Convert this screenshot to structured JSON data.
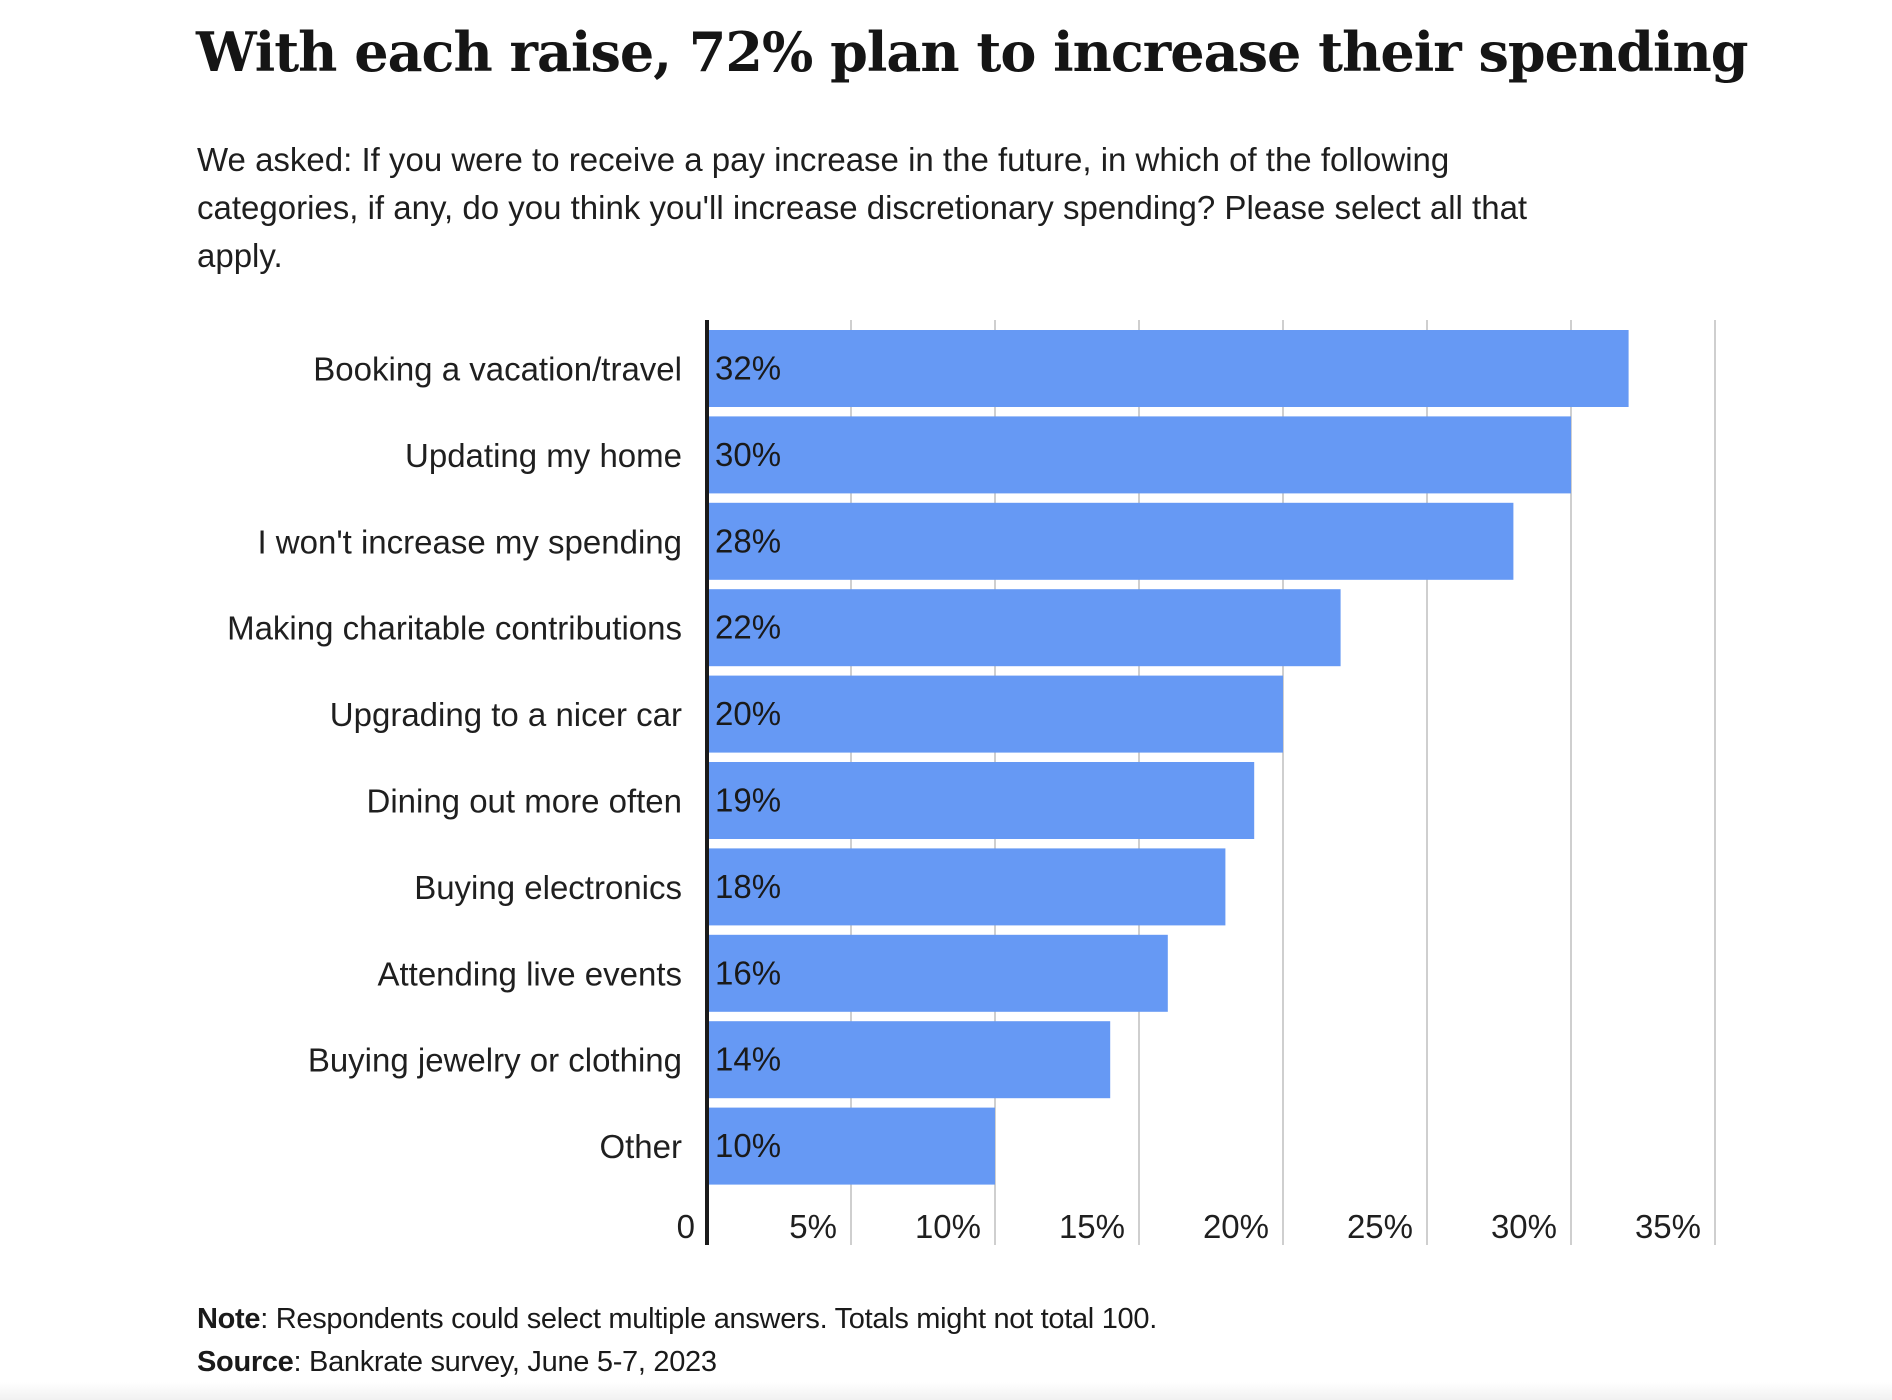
{
  "title": "With each raise, 72% plan to increase their spending",
  "subtitle": "We asked: If you were to receive a pay increase in the future, in which of the following categories, if any, do you think you'll increase discretionary spending? Please select all that apply.",
  "footer": {
    "note_label": "Note",
    "note_text": ": Respondents could select multiple answers. Totals might not total 100.",
    "source_label": "Source",
    "source_text": ": Bankrate survey, June 5-7, 2023"
  },
  "colors": {
    "bar": "#6699F4",
    "grid": "#cfcfcf",
    "axis": "#1a1a1a"
  },
  "chart_data": {
    "type": "bar",
    "orientation": "horizontal",
    "categories": [
      "Booking a vacation/travel",
      "Updating my home",
      "I won't increase my spending",
      "Making charitable contributions",
      "Upgrading to a nicer car",
      "Dining out more often",
      "Buying electronics",
      "Attending live events",
      "Buying jewelry or clothing",
      "Other"
    ],
    "values": [
      32,
      30,
      28,
      22,
      20,
      19,
      18,
      16,
      14,
      10
    ],
    "value_labels": [
      "32%",
      "30%",
      "28%",
      "22%",
      "20%",
      "19%",
      "18%",
      "16%",
      "14%",
      "10%"
    ],
    "xlim": [
      0,
      35
    ],
    "xticks": [
      0,
      5,
      10,
      15,
      20,
      25,
      30,
      35
    ],
    "xtick_labels": [
      "0",
      "5%",
      "10%",
      "15%",
      "20%",
      "25%",
      "30%",
      "35%"
    ],
    "grid": true,
    "title": "",
    "xlabel": "",
    "ylabel": ""
  }
}
